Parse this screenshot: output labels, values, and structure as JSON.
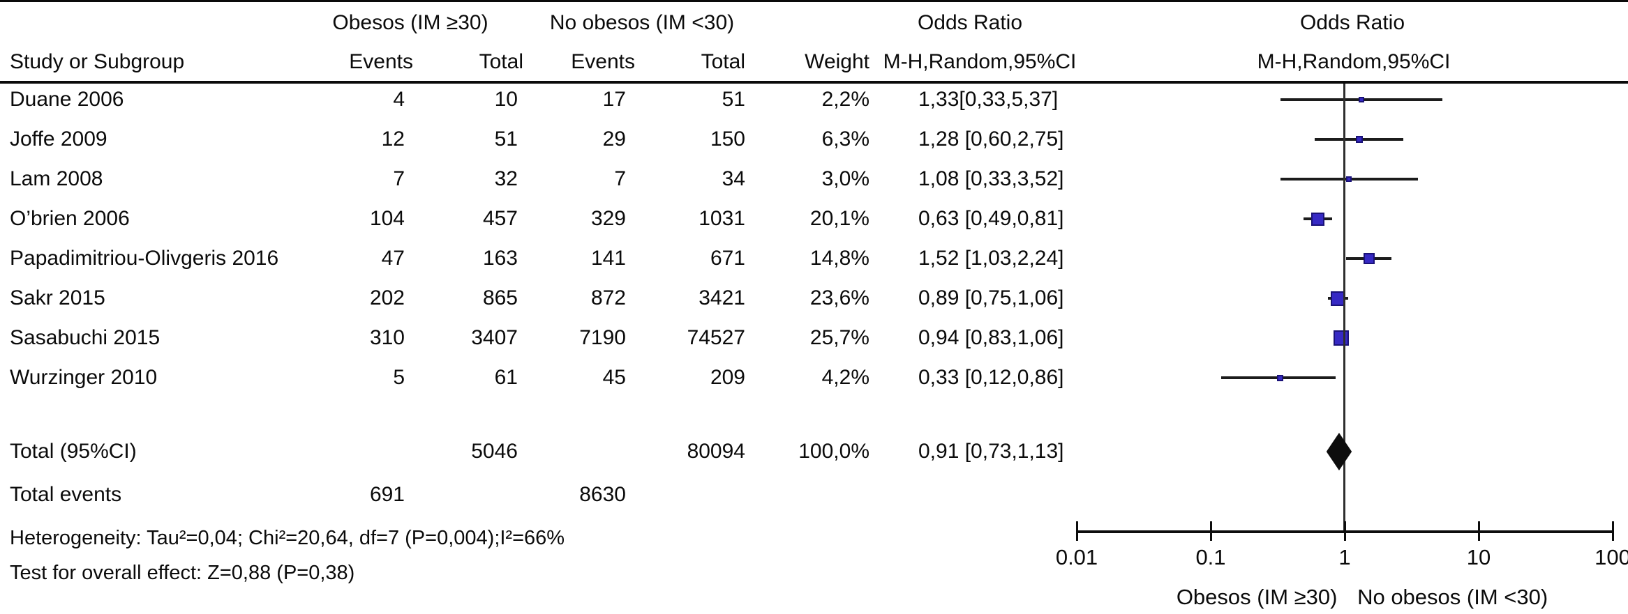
{
  "header": {
    "col_study": "Study or Subgroup",
    "group1": "Obesos (IM ≥30)",
    "group2": "No obesos (IM <30)",
    "col_events": "Events",
    "col_total": "Total",
    "col_weight": "Weight",
    "or_title": "Odds Ratio",
    "or_method": "M-H,Random,95%CI"
  },
  "chart_data": {
    "type": "scatter",
    "variant": "forest-plot",
    "x_scale": "log10",
    "xlim": [
      0.01,
      100
    ],
    "x_ticks": [
      0.01,
      0.1,
      1,
      10,
      100
    ],
    "x_tick_labels": [
      "0.01",
      "0.1",
      "1",
      "10",
      "100"
    ],
    "no_effect_line_at": 1,
    "axis_label_left": "Obesos (IM ≥30)",
    "axis_label_right": "No obesos (IM <30)",
    "studies": [
      {
        "name": "Duane 2006",
        "events1": "4",
        "total1": "10",
        "events2": "17",
        "total2": "51",
        "weight": "2,2%",
        "weight_pct": 2.2,
        "or_text": "1,33[0,33,5,37]",
        "or": 1.33,
        "ci_low": 0.33,
        "ci_high": 5.37
      },
      {
        "name": "Joffe 2009",
        "events1": "12",
        "total1": "51",
        "events2": "29",
        "total2": "150",
        "weight": "6,3%",
        "weight_pct": 6.3,
        "or_text": "1,28 [0,60,2,75]",
        "or": 1.28,
        "ci_low": 0.6,
        "ci_high": 2.75
      },
      {
        "name": "Lam 2008",
        "events1": "7",
        "total1": "32",
        "events2": "7",
        "total2": "34",
        "weight": "3,0%",
        "weight_pct": 3.0,
        "or_text": "1,08 [0,33,3,52]",
        "or": 1.08,
        "ci_low": 0.33,
        "ci_high": 3.52
      },
      {
        "name": "O’brien 2006",
        "events1": "104",
        "total1": "457",
        "events2": "329",
        "total2": "1031",
        "weight": "20,1%",
        "weight_pct": 20.1,
        "or_text": "0,63 [0,49,0,81]",
        "or": 0.63,
        "ci_low": 0.49,
        "ci_high": 0.81
      },
      {
        "name": "Papadimitriou-Olivgeris 2016",
        "events1": "47",
        "total1": "163",
        "events2": "141",
        "total2": "671",
        "weight": "14,8%",
        "weight_pct": 14.8,
        "or_text": "1,52 [1,03,2,24]",
        "or": 1.52,
        "ci_low": 1.03,
        "ci_high": 2.24
      },
      {
        "name": "Sakr 2015",
        "events1": "202",
        "total1": "865",
        "events2": "872",
        "total2": "3421",
        "weight": "23,6%",
        "weight_pct": 23.6,
        "or_text": "0,89 [0,75,1,06]",
        "or": 0.89,
        "ci_low": 0.75,
        "ci_high": 1.06
      },
      {
        "name": "Sasabuchi 2015",
        "events1": "310",
        "total1": "3407",
        "events2": "7190",
        "total2": "74527",
        "weight": "25,7%",
        "weight_pct": 25.7,
        "or_text": "0,94 [0,83,1,06]",
        "or": 0.94,
        "ci_low": 0.83,
        "ci_high": 1.06
      },
      {
        "name": "Wurzinger 2010",
        "events1": "5",
        "total1": "61",
        "events2": "45",
        "total2": "209",
        "weight": "4,2%",
        "weight_pct": 4.2,
        "or_text": "0,33 [0,12,0,86]",
        "or": 0.33,
        "ci_low": 0.12,
        "ci_high": 0.86
      }
    ],
    "total": {
      "label": "Total (95%CI)",
      "total1": "5046",
      "total2": "80094",
      "weight": "100,0%",
      "or_text": "0,91 [0,73,1,13]",
      "or": 0.91,
      "ci_low": 0.73,
      "ci_high": 1.13
    },
    "total_events": {
      "label": "Total events",
      "events1": "691",
      "events2": "8630"
    },
    "footnotes": {
      "heterogeneity": "Heterogeneity: Tau²=0,04; Chi²=20,64, df=7 (P=0,004);I²=66%",
      "overall": "Test for overall effect: Z=0,88 (P=0,38)"
    },
    "colors": {
      "marker_fill": "#3629c4",
      "marker_border": "#1a1278",
      "diamond": "#0d0d0d",
      "ci_line": "#1c1c1c",
      "axis": "#0d0d0d"
    }
  }
}
